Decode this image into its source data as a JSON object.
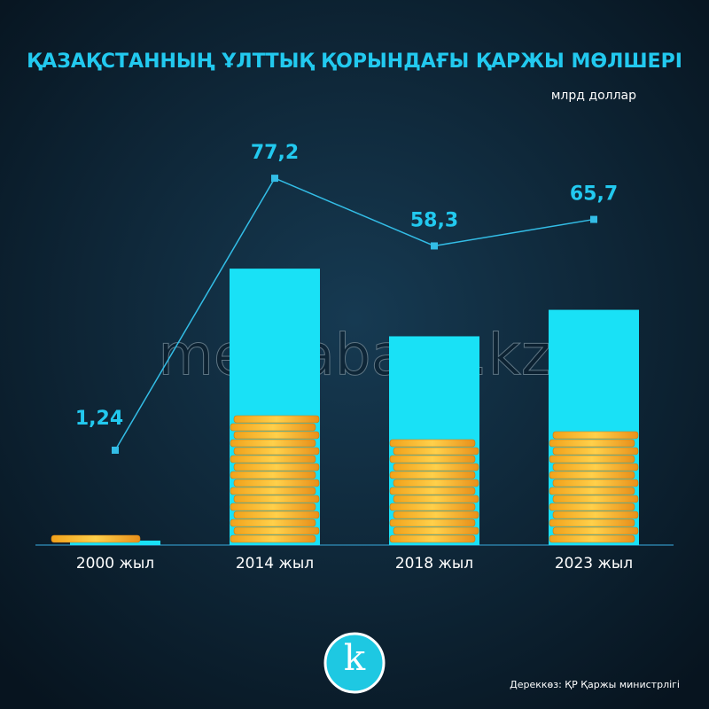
{
  "chart_data": {
    "type": "bar",
    "title": "ҚАЗАҚСТАННЫҢ ҰЛТТЫҚ ҚОРЫНДАҒЫ ҚАРЖЫ МӨЛШЕРІ",
    "unit": "млрд доллар",
    "categories": [
      "2000 жыл",
      "2014 жыл",
      "2018 жыл",
      "2023 жыл"
    ],
    "values": [
      1.24,
      77.2,
      58.3,
      65.7
    ],
    "value_labels": [
      "1,24",
      "77,2",
      "58,3",
      "65,7"
    ],
    "color": "#19e1f6",
    "line_color": "#33bde6",
    "ylim": [
      0,
      80
    ],
    "source": "Дереккөз: ҚР Қаржы министрлігі",
    "watermark": "mediabase.kz",
    "logo": "k"
  }
}
